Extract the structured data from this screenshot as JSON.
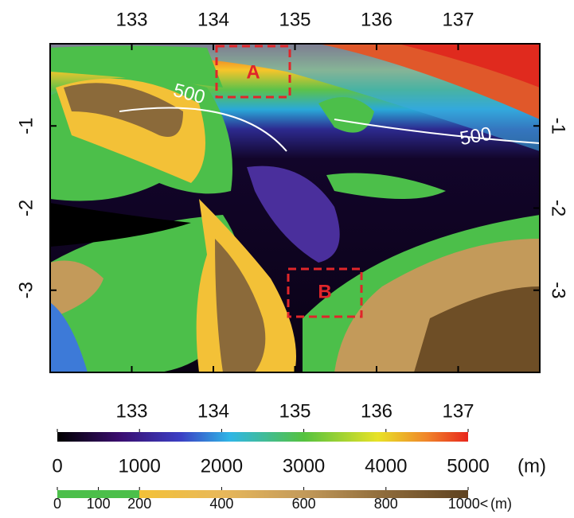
{
  "map": {
    "xlim": [
      132,
      138
    ],
    "xticks": [
      133,
      134,
      135,
      136,
      137
    ],
    "ylim": [
      -4,
      0
    ],
    "yticks": [
      -1,
      -2,
      -3
    ],
    "boxes": [
      {
        "label": "A"
      },
      {
        "label": "B"
      }
    ],
    "contour_labels": [
      "500",
      "500"
    ],
    "colorbars": [
      {
        "range": [
          0,
          5000
        ],
        "ticks": [
          0,
          1000,
          2000,
          3000,
          4000,
          5000
        ],
        "unit": "(m)"
      },
      {
        "range": [
          0,
          1000
        ],
        "ticks": [
          0,
          100,
          200,
          400,
          600,
          800,
          {
            "value": 1000,
            "label": "1000<"
          }
        ],
        "unit": "(m)"
      }
    ]
  }
}
